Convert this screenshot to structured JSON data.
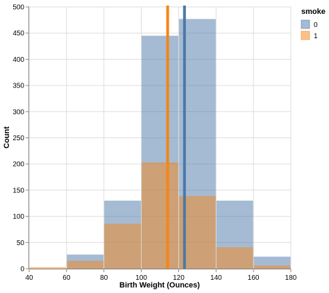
{
  "chart_data": {
    "type": "bar",
    "xlabel": "Birth Weight (Ounces)",
    "ylabel": "Count",
    "xlim": [
      40,
      180
    ],
    "ylim": [
      0,
      500
    ],
    "x_ticks": [
      "40",
      "60",
      "80",
      "100",
      "120",
      "140",
      "160",
      "180"
    ],
    "y_ticks": [
      "0",
      "50",
      "100",
      "150",
      "200",
      "250",
      "300",
      "350",
      "400",
      "450",
      "500"
    ],
    "grid": true,
    "legend_position": "right",
    "legend": {
      "title": "smoke",
      "entries": [
        "0",
        "1"
      ]
    },
    "bin_edges": [
      40,
      60,
      80,
      100,
      120,
      140,
      160,
      180
    ],
    "series": [
      {
        "name": "0",
        "color": "#4c78a8",
        "values": [
          0,
          27,
          130,
          445,
          477,
          130,
          23
        ]
      },
      {
        "name": "1",
        "color": "#f58518",
        "values": [
          3,
          15,
          86,
          203,
          139,
          41,
          6
        ]
      }
    ],
    "rules": [
      {
        "series": "0",
        "x": 123.1,
        "color": "#4c78a8"
      },
      {
        "series": "1",
        "x": 114.1,
        "color": "#f58518"
      }
    ]
  }
}
